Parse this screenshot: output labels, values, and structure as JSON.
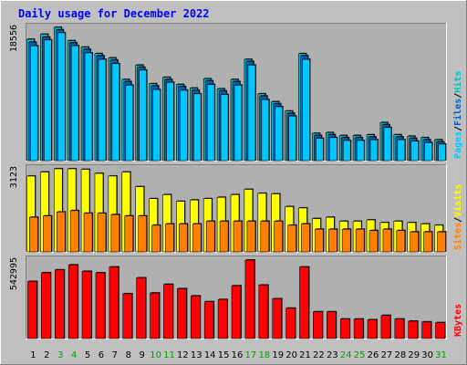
{
  "chart_data": {
    "type": "bar",
    "title": "Daily usage for December 2022",
    "categories": [
      "1",
      "2",
      "3",
      "4",
      "5",
      "6",
      "7",
      "8",
      "9",
      "10",
      "11",
      "12",
      "13",
      "14",
      "15",
      "16",
      "17",
      "18",
      "19",
      "20",
      "21",
      "22",
      "23",
      "24",
      "25",
      "26",
      "27",
      "28",
      "29",
      "30",
      "31"
    ],
    "weekend_days": [
      "3",
      "4",
      "10",
      "11",
      "17",
      "18",
      "24",
      "25",
      "31"
    ],
    "panels": [
      {
        "id": "pages-files-hits",
        "ymax_label": "18556",
        "ymax": 18556,
        "right_label_parts": [
          "Pages",
          "/",
          "Files",
          "/",
          "Hits"
        ],
        "series": [
          {
            "name": "Hits",
            "color": "#00c0c0",
            "values": [
              16900,
              17600,
              18556,
              16700,
              15800,
              14900,
              14300,
              11300,
              13300,
              10700,
              11600,
              10600,
              10100,
              11400,
              10000,
              11300,
              14100,
              9300,
              8200,
              6900,
              14900,
              3800,
              3900,
              3500,
              3500,
              3600,
              5300,
              3600,
              3400,
              3200,
              2900
            ]
          },
          {
            "name": "Files",
            "color": "#0060c0",
            "values": [
              16500,
              17200,
              18200,
              16400,
              15500,
              14600,
              14000,
              11000,
              13000,
              10400,
              11300,
              10300,
              9800,
              11100,
              9700,
              11000,
              13800,
              9000,
              7900,
              6600,
              14600,
              3500,
              3600,
              3200,
              3200,
              3300,
              5000,
              3300,
              3100,
              2900,
              2600
            ]
          },
          {
            "name": "Pages",
            "color": "#00c8ff",
            "values": [
              16000,
              16800,
              17800,
              16000,
              15000,
              14100,
              13500,
              10500,
              12600,
              9900,
              10900,
              9800,
              9300,
              10600,
              9200,
              10500,
              13300,
              8500,
              7500,
              6200,
              14100,
              3100,
              3200,
              2800,
              2800,
              2900,
              4600,
              2900,
              2700,
              2500,
              2300
            ]
          }
        ]
      },
      {
        "id": "visits-sites",
        "ymax_label": "3123",
        "ymax": 3123,
        "right_label_parts": [
          "Sites",
          "/",
          "Visits"
        ],
        "series": [
          {
            "name": "Visits",
            "color": "#ffff00",
            "values": [
              2850,
              3000,
              3123,
              3123,
              3100,
              2950,
              2850,
              3000,
              2450,
              2000,
              2150,
              1900,
              1950,
              2000,
              2050,
              2150,
              2350,
              2200,
              2180,
              1700,
              1650,
              1250,
              1300,
              1150,
              1150,
              1200,
              1100,
              1150,
              1100,
              1050,
              1000
            ]
          },
          {
            "name": "Sites",
            "color": "#ff8000",
            "values": [
              1300,
              1350,
              1500,
              1550,
              1450,
              1450,
              1400,
              1350,
              1350,
              1000,
              1050,
              1050,
              1050,
              1150,
              1150,
              1150,
              1150,
              1150,
              1150,
              1000,
              1050,
              850,
              850,
              850,
              850,
              800,
              850,
              800,
              750,
              750,
              750
            ]
          }
        ]
      },
      {
        "id": "kbytes",
        "ymax_label": "542995",
        "ymax": 542995,
        "right_label_parts": [
          "KBytes"
        ],
        "series": [
          {
            "name": "KBytes",
            "color": "#ff0000",
            "values": [
              395000,
              455000,
              475000,
              510000,
              465000,
              455000,
              495000,
              310000,
              420000,
              315000,
              375000,
              345000,
              295000,
              255000,
              270000,
              365000,
              542995,
              370000,
              275000,
              210000,
              495000,
              185000,
              185000,
              135000,
              135000,
              130000,
              160000,
              135000,
              120000,
              115000,
              110000
            ]
          }
        ]
      }
    ]
  },
  "colors": {
    "background": "#c0c0c0",
    "plot_background": "#b0b0b0",
    "title": "#0000ff",
    "weekday_label": "#000000",
    "weekend_label": "#00a000"
  }
}
